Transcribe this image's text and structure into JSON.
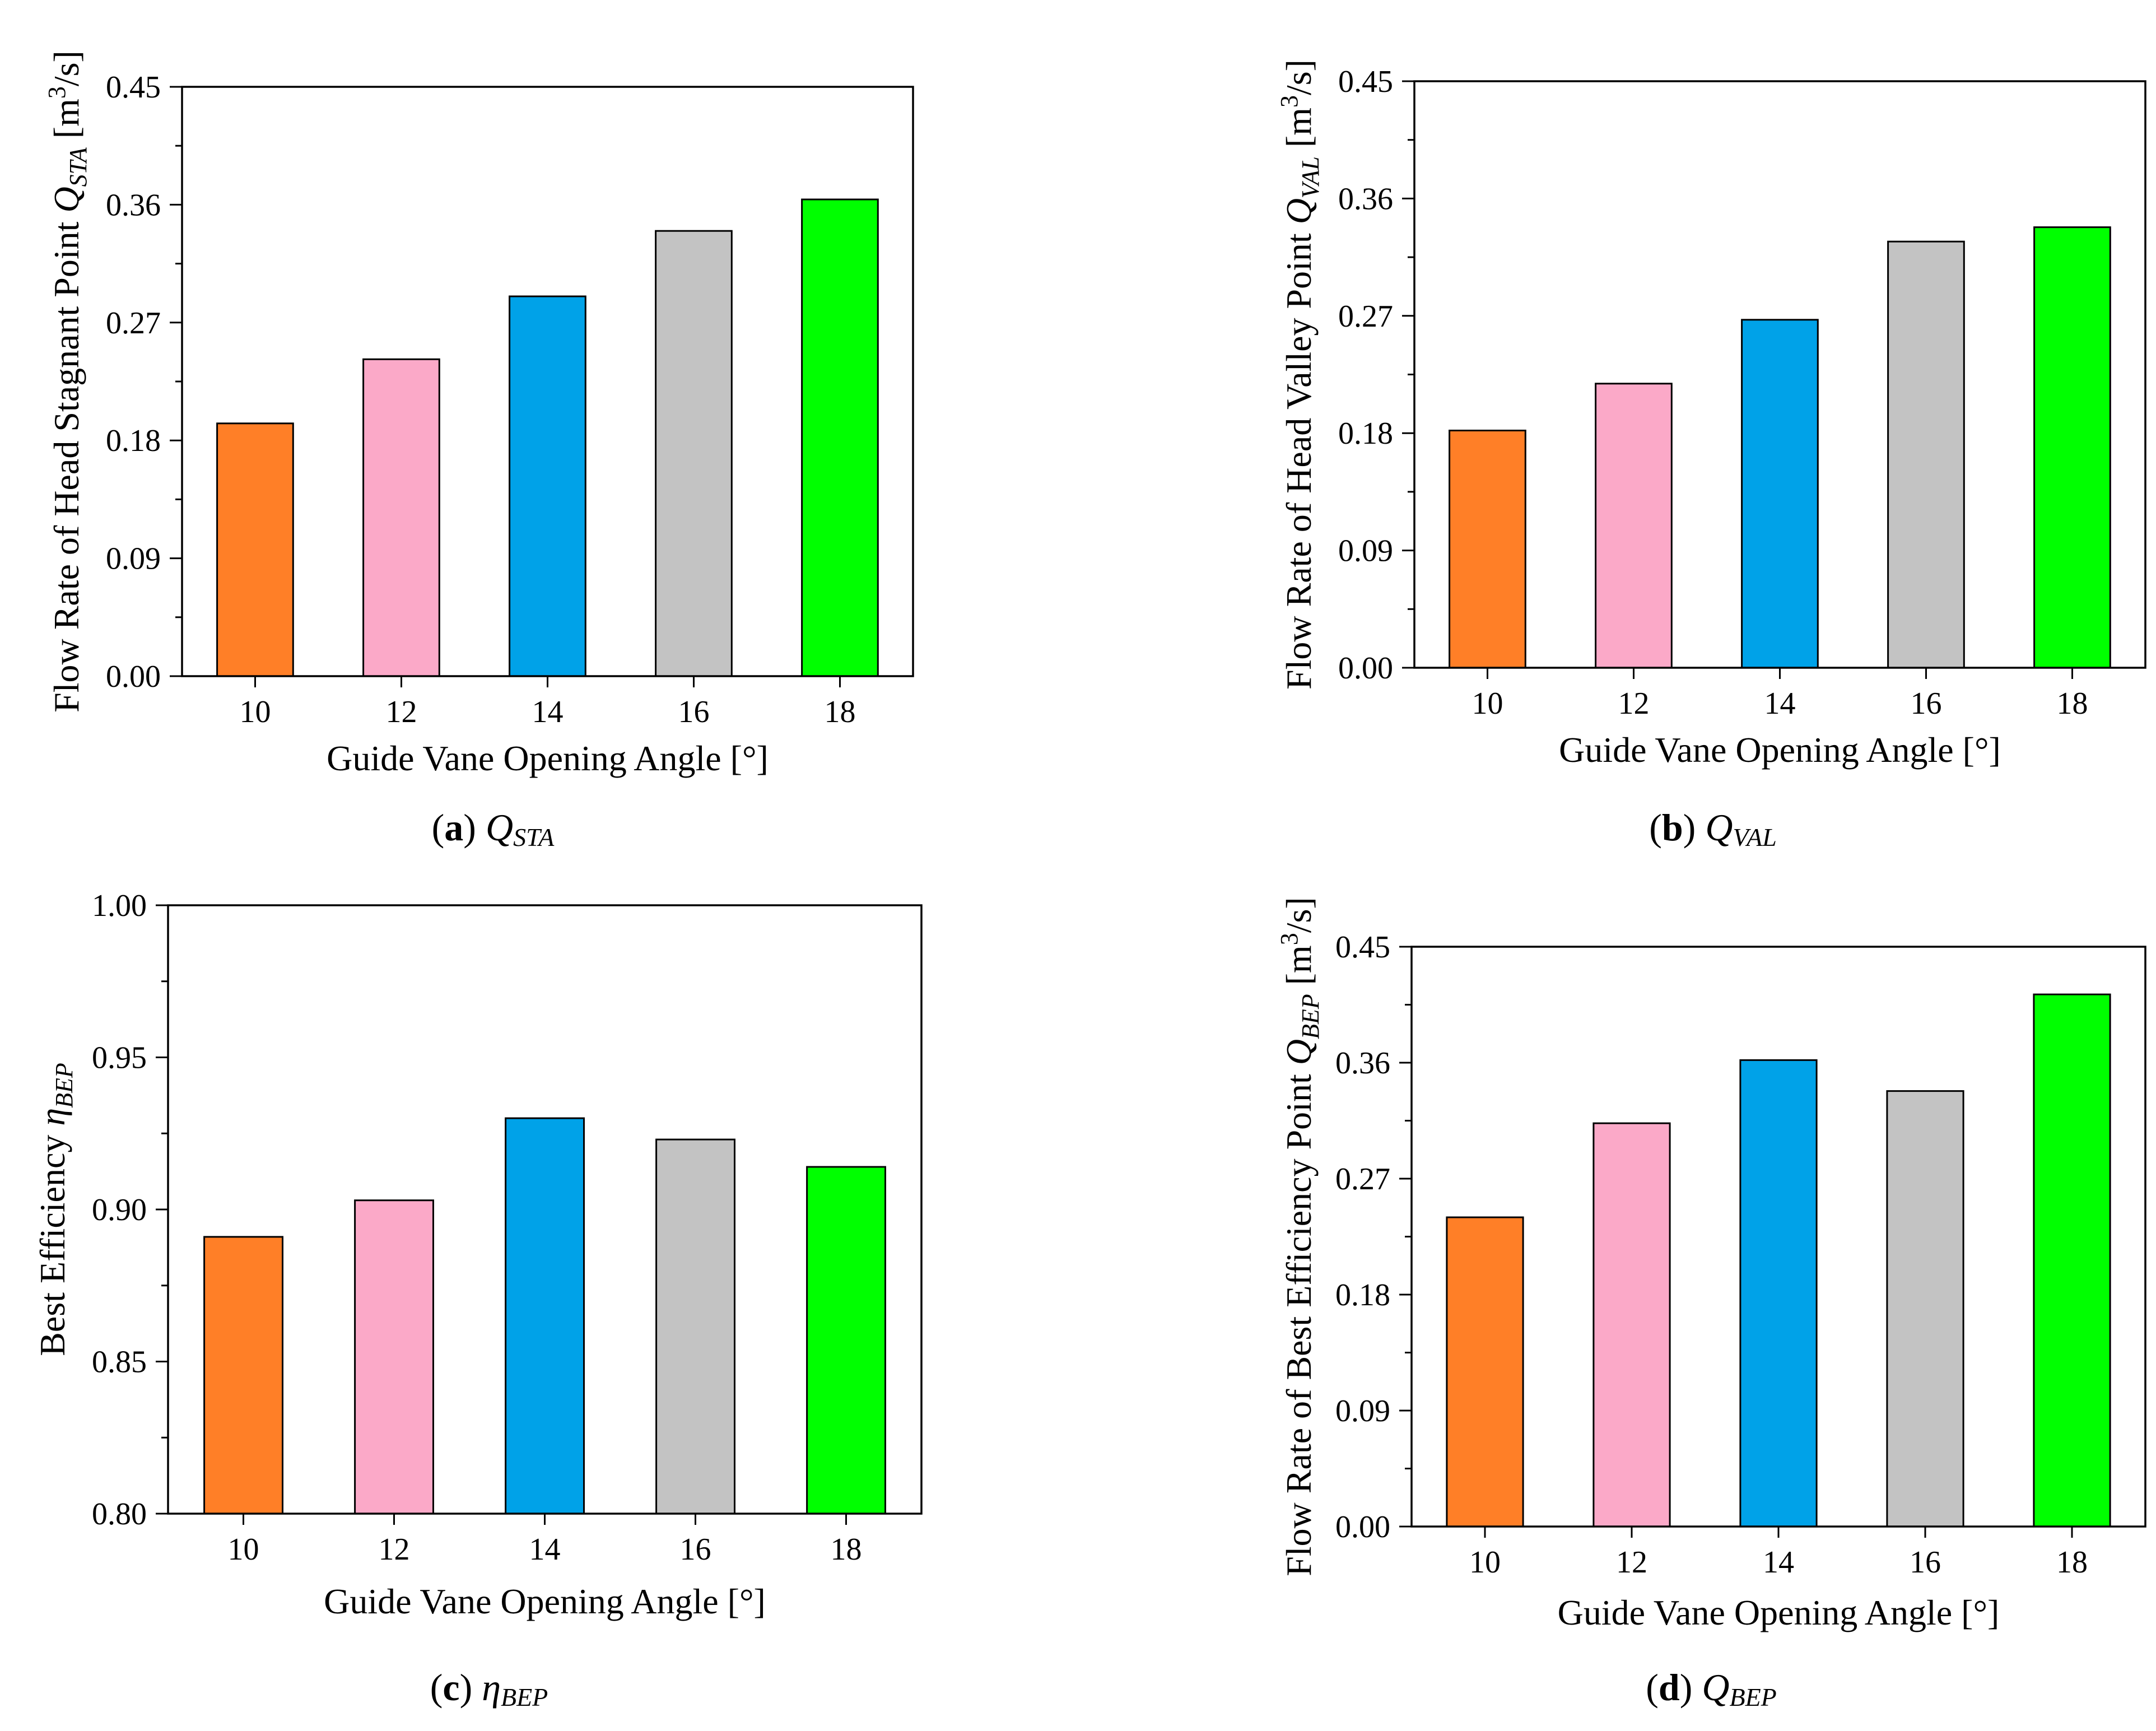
{
  "chart_data": [
    {
      "id": "a",
      "type": "bar",
      "title": "",
      "categories": [
        "10",
        "12",
        "14",
        "16",
        "18"
      ],
      "values": [
        0.193,
        0.242,
        0.29,
        0.34,
        0.364
      ],
      "colors": [
        "#FF7F27",
        "#FBA9C8",
        "#00A2E8",
        "#C3C3C3",
        "#00FF00"
      ],
      "ylim": [
        0,
        0.45
      ],
      "yticks": [
        "0.00",
        "0.09",
        "0.18",
        "0.27",
        "0.36",
        "0.45"
      ],
      "xlabel": "Guide Vane Opening Angle [°]",
      "ylabel": {
        "prefix": "Flow Rate of Head Stagnant Point ",
        "symbol": "Q",
        "sub": "STA",
        "unit_pre": " [m",
        "unit_sup": "3",
        "unit_post": "/s]"
      },
      "caption": {
        "label": "a",
        "symbol": "Q",
        "sub": "STA"
      }
    },
    {
      "id": "b",
      "type": "bar",
      "title": "",
      "categories": [
        "10",
        "12",
        "14",
        "16",
        "18"
      ],
      "values": [
        0.182,
        0.218,
        0.267,
        0.327,
        0.338
      ],
      "colors": [
        "#FF7F27",
        "#FBA9C8",
        "#00A2E8",
        "#C3C3C3",
        "#00FF00"
      ],
      "ylim": [
        0,
        0.45
      ],
      "yticks": [
        "0.00",
        "0.09",
        "0.18",
        "0.27",
        "0.36",
        "0.45"
      ],
      "xlabel": "Guide Vane Opening Angle [°]",
      "ylabel": {
        "prefix": "Flow Rate of Head Valley Point ",
        "symbol": "Q",
        "sub": "VAL",
        "unit_pre": " [m",
        "unit_sup": "3",
        "unit_post": "/s]"
      },
      "caption": {
        "label": "b",
        "symbol": "Q",
        "sub": "VAL"
      }
    },
    {
      "id": "c",
      "type": "bar",
      "title": "",
      "categories": [
        "10",
        "12",
        "14",
        "16",
        "18"
      ],
      "values": [
        0.891,
        0.903,
        0.93,
        0.923,
        0.914
      ],
      "colors": [
        "#FF7F27",
        "#FBA9C8",
        "#00A2E8",
        "#C3C3C3",
        "#00FF00"
      ],
      "ylim": [
        0.8,
        1.0
      ],
      "yticks": [
        "0.80",
        "0.85",
        "0.90",
        "0.95",
        "1.00"
      ],
      "xlabel": "Guide Vane Opening Angle [°]",
      "ylabel": {
        "prefix": "Best Efficiency ",
        "symbol": "η",
        "sub": "BEP",
        "unit_pre": "",
        "unit_sup": "",
        "unit_post": ""
      },
      "caption": {
        "label": "c",
        "symbol": "η",
        "sub": "BEP"
      }
    },
    {
      "id": "d",
      "type": "bar",
      "title": "",
      "categories": [
        "10",
        "12",
        "14",
        "16",
        "18"
      ],
      "values": [
        0.24,
        0.313,
        0.362,
        0.338,
        0.413
      ],
      "colors": [
        "#FF7F27",
        "#FBA9C8",
        "#00A2E8",
        "#C3C3C3",
        "#00FF00"
      ],
      "ylim": [
        0,
        0.45
      ],
      "yticks": [
        "0.00",
        "0.09",
        "0.18",
        "0.27",
        "0.36",
        "0.45"
      ],
      "xlabel": "Guide Vane Opening Angle [°]",
      "ylabel": {
        "prefix": "Flow Rate of Best Efficiency Point ",
        "symbol": "Q",
        "sub": "BEP",
        "unit_pre": " [m",
        "unit_sup": "3",
        "unit_post": "/s]"
      },
      "caption": {
        "label": "d",
        "symbol": "Q",
        "sub": "BEP"
      }
    }
  ]
}
